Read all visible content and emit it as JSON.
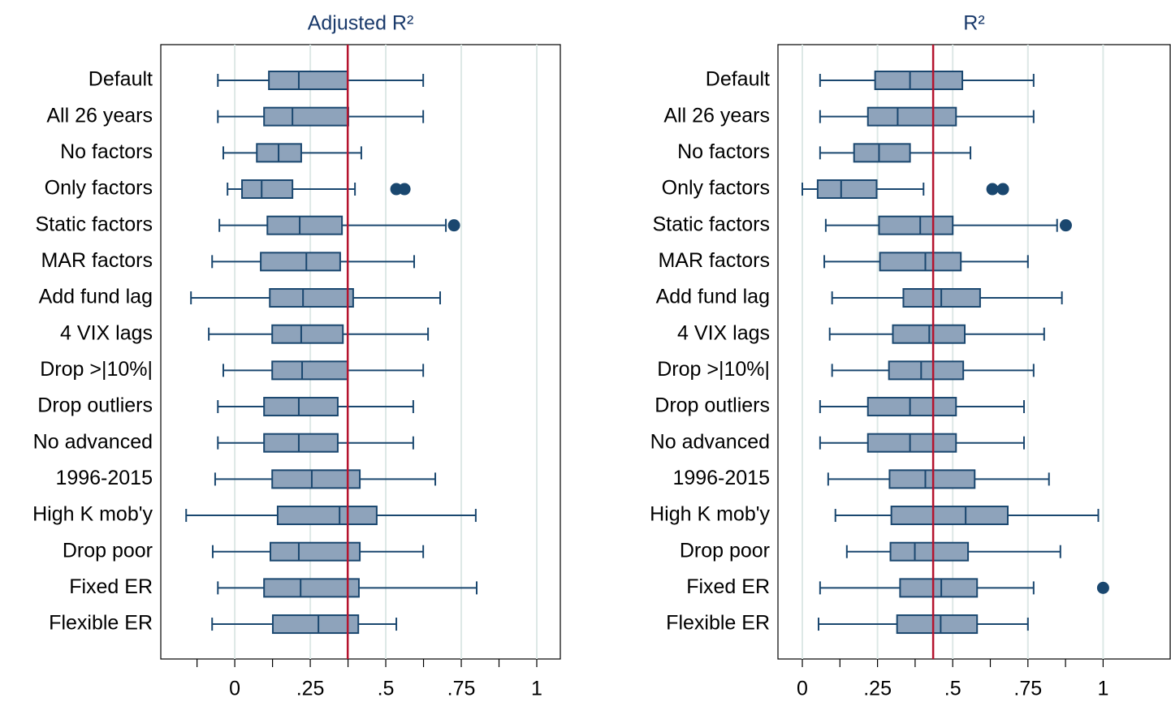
{
  "chart_data": [
    {
      "type": "box",
      "title": "Adjusted R²",
      "categories": [
        "Default",
        "All 26 years",
        "No factors",
        "Only factors",
        "Static factors",
        "MAR factors",
        "Add fund lag",
        "4 VIX lags",
        "Drop >|10%|",
        "Drop outliers",
        "No advanced",
        "1996-2015",
        "High K mob'y",
        "Drop poor",
        "Fixed ER",
        "Flexible ER"
      ],
      "whislo": [
        -0.056,
        -0.056,
        -0.038,
        -0.024,
        -0.051,
        -0.075,
        -0.145,
        -0.086,
        -0.038,
        -0.056,
        -0.056,
        -0.065,
        -0.161,
        -0.073,
        -0.056,
        -0.075
      ],
      "q1": [
        0.113,
        0.097,
        0.073,
        0.024,
        0.108,
        0.086,
        0.116,
        0.124,
        0.124,
        0.097,
        0.097,
        0.124,
        0.142,
        0.118,
        0.097,
        0.126
      ],
      "median": [
        0.212,
        0.191,
        0.145,
        0.089,
        0.215,
        0.237,
        0.226,
        0.22,
        0.223,
        0.212,
        0.212,
        0.255,
        0.347,
        0.212,
        0.218,
        0.277
      ],
      "q3": [
        0.374,
        0.376,
        0.22,
        0.191,
        0.355,
        0.349,
        0.392,
        0.358,
        0.374,
        0.341,
        0.341,
        0.414,
        0.47,
        0.414,
        0.411,
        0.409
      ],
      "whishi": [
        0.624,
        0.624,
        0.419,
        0.398,
        0.699,
        0.594,
        0.68,
        0.64,
        0.624,
        0.591,
        0.591,
        0.664,
        0.798,
        0.624,
        0.801,
        0.535
      ],
      "outliers": [
        [],
        [],
        [],
        [
          0.535,
          0.562
        ],
        [
          0.726
        ],
        [],
        [],
        [],
        [],
        [],
        [],
        [],
        [],
        [],
        [],
        []
      ],
      "ref_line": 0.374,
      "xlim": [
        -0.245,
        1.078
      ],
      "xticks": [
        0,
        {
          "value": 0.25,
          "label": ".25"
        },
        {
          "value": 0.5,
          "label": ".5"
        },
        {
          "value": 0.75,
          "label": ".75"
        },
        1
      ],
      "xminor_ticks": [
        -0.125,
        0.125,
        0.375,
        0.625,
        0.875
      ],
      "grid": true,
      "color": "#8ea3bb",
      "line_color": "#1a476f",
      "ref_color": "#b5132e"
    },
    {
      "type": "box",
      "title": "R²",
      "categories": [
        "Default",
        "All 26 years",
        "No factors",
        "Only factors",
        "Static factors",
        "MAR factors",
        "Add fund lag",
        "4 VIX lags",
        "Drop >|10%|",
        "Drop outliers",
        "No advanced",
        "1996-2015",
        "High K mob'y",
        "Drop poor",
        "Fixed ER",
        "Flexible ER"
      ],
      "whislo": [
        0.059,
        0.059,
        0.059,
        0,
        0.078,
        0.073,
        0.099,
        0.091,
        0.099,
        0.059,
        0.059,
        0.086,
        0.11,
        0.148,
        0.059,
        0.054
      ],
      "q1": [
        0.242,
        0.218,
        0.172,
        0.051,
        0.255,
        0.258,
        0.336,
        0.301,
        0.288,
        0.218,
        0.218,
        0.29,
        0.296,
        0.293,
        0.325,
        0.315
      ],
      "median": [
        0.358,
        0.317,
        0.255,
        0.129,
        0.392,
        0.409,
        0.462,
        0.422,
        0.395,
        0.358,
        0.358,
        0.409,
        0.543,
        0.374,
        0.462,
        0.46
      ],
      "q3": [
        0.532,
        0.511,
        0.358,
        0.247,
        0.5,
        0.527,
        0.591,
        0.54,
        0.535,
        0.511,
        0.511,
        0.573,
        0.683,
        0.551,
        0.581,
        0.581
      ],
      "whishi": [
        0.769,
        0.769,
        0.559,
        0.403,
        0.847,
        0.75,
        0.863,
        0.804,
        0.769,
        0.737,
        0.737,
        0.82,
        0.984,
        0.858,
        0.769,
        0.75
      ],
      "outliers": [
        [],
        [],
        [],
        [
          0.632,
          0.667
        ],
        [
          0.876
        ],
        [],
        [],
        [],
        [],
        [],
        [],
        [],
        [],
        [],
        [
          1.0
        ],
        []
      ],
      "ref_line": 0.435,
      "xlim": [
        -0.081,
        1.223
      ],
      "xticks": [
        0,
        {
          "value": 0.25,
          "label": ".25"
        },
        {
          "value": 0.5,
          "label": ".5"
        },
        {
          "value": 0.75,
          "label": ".75"
        },
        1
      ],
      "xminor_ticks": [
        0.125,
        0.375,
        0.625,
        0.875
      ],
      "grid": true,
      "color": "#8ea3bb",
      "line_color": "#1a476f",
      "ref_color": "#b5132e"
    }
  ]
}
